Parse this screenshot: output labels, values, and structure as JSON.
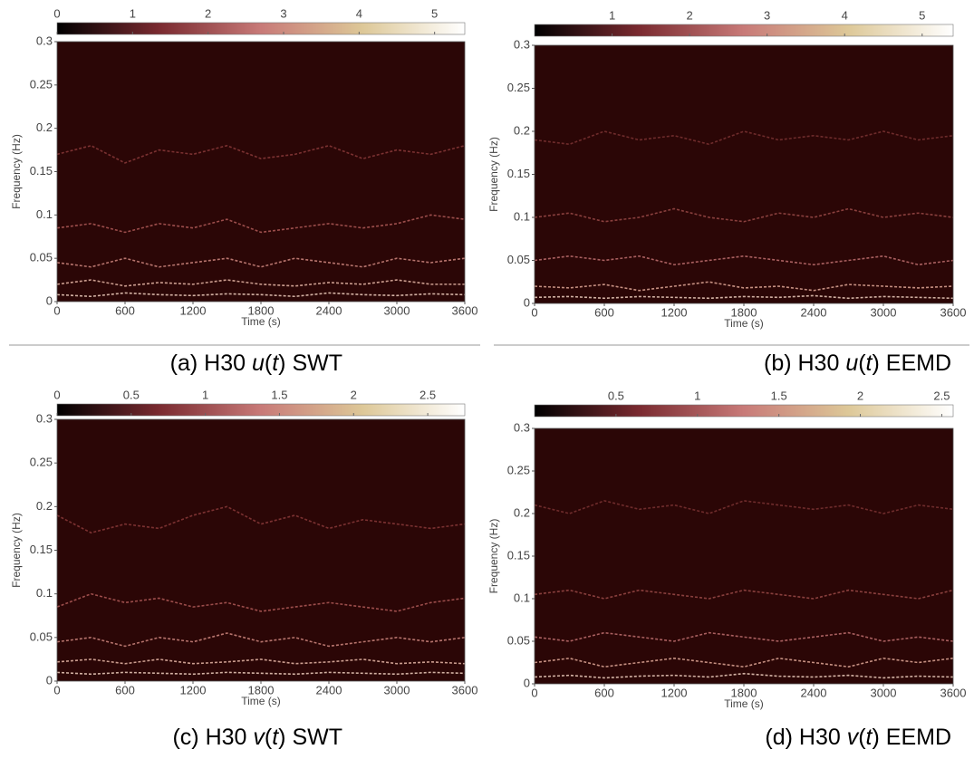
{
  "chart_data": [
    {
      "type": "heatmap",
      "xlabel": "Time (s)",
      "ylabel": "Frequency (Hz)",
      "caption": [
        {
          "text": "(a) H30 "
        },
        {
          "text": "u",
          "italic": true
        },
        {
          "text": "("
        },
        {
          "text": "t",
          "italic": true
        },
        {
          "text": ") SWT"
        }
      ],
      "xlim": [
        0,
        3600
      ],
      "xticks": [
        0,
        600,
        1200,
        1800,
        2400,
        3000,
        3600
      ],
      "ylim": [
        0,
        0.3
      ],
      "yticks": [
        0,
        0.05,
        0.1,
        0.15,
        0.2,
        0.25,
        0.3
      ],
      "colorbar": {
        "lim": [
          0,
          5.4
        ],
        "ticks": [
          0,
          1,
          2,
          3,
          4,
          5
        ],
        "colors": [
          "#000000",
          "#7a2a30",
          "#c87a78",
          "#ddc898",
          "#ffffff"
        ]
      },
      "background": "#2b0606",
      "x": [
        0,
        300,
        600,
        900,
        1200,
        1500,
        1800,
        2100,
        2400,
        2700,
        3000,
        3300,
        3600
      ],
      "series": [
        {
          "color": "#8a3a3a",
          "values": [
            0.17,
            0.18,
            0.16,
            0.175,
            0.17,
            0.18,
            0.165,
            0.17,
            0.18,
            0.165,
            0.175,
            0.17,
            0.18
          ]
        },
        {
          "color": "#b05a58",
          "values": [
            0.085,
            0.09,
            0.08,
            0.09,
            0.085,
            0.095,
            0.08,
            0.085,
            0.09,
            0.085,
            0.09,
            0.1,
            0.095
          ]
        },
        {
          "color": "#d08880",
          "values": [
            0.045,
            0.04,
            0.05,
            0.04,
            0.045,
            0.05,
            0.04,
            0.05,
            0.045,
            0.04,
            0.05,
            0.045,
            0.05
          ]
        },
        {
          "color": "#e8b8a8",
          "values": [
            0.02,
            0.025,
            0.018,
            0.022,
            0.02,
            0.025,
            0.02,
            0.018,
            0.022,
            0.02,
            0.025,
            0.02,
            0.02
          ]
        },
        {
          "color": "#f0d0c0",
          "values": [
            0.008,
            0.006,
            0.01,
            0.008,
            0.007,
            0.009,
            0.008,
            0.006,
            0.01,
            0.008,
            0.007,
            0.009,
            0.008
          ]
        }
      ]
    },
    {
      "type": "heatmap",
      "xlabel": "Time (s)",
      "ylabel": "Frequency (Hz)",
      "caption": [
        {
          "text": "(b) H30 "
        },
        {
          "text": "u",
          "italic": true
        },
        {
          "text": "("
        },
        {
          "text": "t",
          "italic": true
        },
        {
          "text": ") EEMD"
        }
      ],
      "xlim": [
        0,
        3600
      ],
      "xticks": [
        0,
        600,
        1200,
        1800,
        2400,
        3000,
        3600
      ],
      "ylim": [
        0,
        0.3
      ],
      "yticks": [
        0,
        0.05,
        0.1,
        0.15,
        0.2,
        0.25,
        0.3
      ],
      "colorbar": {
        "lim": [
          0,
          5.4
        ],
        "ticks": [
          1,
          2,
          3,
          4,
          5
        ],
        "colors": [
          "#000000",
          "#7a2a30",
          "#c87a78",
          "#ddc898",
          "#ffffff"
        ]
      },
      "background": "#2b0606",
      "x": [
        0,
        300,
        600,
        900,
        1200,
        1500,
        1800,
        2100,
        2400,
        2700,
        3000,
        3300,
        3600
      ],
      "series": [
        {
          "color": "#7a3232",
          "values": [
            0.19,
            0.185,
            0.2,
            0.19,
            0.195,
            0.185,
            0.2,
            0.19,
            0.195,
            0.19,
            0.2,
            0.19,
            0.195
          ]
        },
        {
          "color": "#9a4a48",
          "values": [
            0.1,
            0.105,
            0.095,
            0.1,
            0.11,
            0.1,
            0.095,
            0.105,
            0.1,
            0.11,
            0.1,
            0.105,
            0.1
          ]
        },
        {
          "color": "#c07070",
          "values": [
            0.05,
            0.055,
            0.05,
            0.055,
            0.045,
            0.05,
            0.055,
            0.05,
            0.045,
            0.05,
            0.055,
            0.045,
            0.05
          ]
        },
        {
          "color": "#e0a898",
          "values": [
            0.02,
            0.018,
            0.022,
            0.015,
            0.02,
            0.025,
            0.018,
            0.02,
            0.015,
            0.022,
            0.02,
            0.018,
            0.02
          ]
        },
        {
          "color": "#f0d0c0",
          "values": [
            0.007,
            0.008,
            0.006,
            0.008,
            0.007,
            0.006,
            0.008,
            0.007,
            0.009,
            0.006,
            0.008,
            0.007,
            0.006
          ]
        }
      ]
    },
    {
      "type": "heatmap",
      "xlabel": "Time (s)",
      "ylabel": "Frequency (Hz)",
      "caption": [
        {
          "text": "(c) H30 "
        },
        {
          "text": "v",
          "italic": true
        },
        {
          "text": "("
        },
        {
          "text": "t",
          "italic": true
        },
        {
          "text": ") SWT"
        }
      ],
      "xlim": [
        0,
        3600
      ],
      "xticks": [
        0,
        600,
        1200,
        1800,
        2400,
        3000,
        3600
      ],
      "ylim": [
        0,
        0.3
      ],
      "yticks": [
        0,
        0.05,
        0.1,
        0.15,
        0.2,
        0.25,
        0.3
      ],
      "colorbar": {
        "lim": [
          0,
          2.75
        ],
        "ticks": [
          0,
          0.5,
          1,
          1.5,
          2,
          2.5
        ],
        "colors": [
          "#000000",
          "#7a2a30",
          "#c87a78",
          "#ddc898",
          "#ffffff"
        ]
      },
      "background": "#2b0606",
      "x": [
        0,
        300,
        600,
        900,
        1200,
        1500,
        1800,
        2100,
        2400,
        2700,
        3000,
        3300,
        3600
      ],
      "series": [
        {
          "color": "#8a3a3a",
          "values": [
            0.19,
            0.17,
            0.18,
            0.175,
            0.19,
            0.2,
            0.18,
            0.19,
            0.175,
            0.185,
            0.18,
            0.175,
            0.18
          ]
        },
        {
          "color": "#b05a58",
          "values": [
            0.085,
            0.1,
            0.09,
            0.095,
            0.085,
            0.09,
            0.08,
            0.085,
            0.09,
            0.085,
            0.08,
            0.09,
            0.095
          ]
        },
        {
          "color": "#d08880",
          "values": [
            0.045,
            0.05,
            0.04,
            0.05,
            0.045,
            0.055,
            0.045,
            0.05,
            0.04,
            0.045,
            0.05,
            0.045,
            0.05
          ]
        },
        {
          "color": "#e8b8a8",
          "values": [
            0.022,
            0.025,
            0.02,
            0.025,
            0.02,
            0.022,
            0.025,
            0.02,
            0.022,
            0.025,
            0.02,
            0.022,
            0.02
          ]
        },
        {
          "color": "#f0d0c0",
          "values": [
            0.01,
            0.008,
            0.01,
            0.009,
            0.008,
            0.01,
            0.009,
            0.008,
            0.01,
            0.009,
            0.008,
            0.01,
            0.009
          ]
        }
      ]
    },
    {
      "type": "heatmap",
      "xlabel": "Time (s)",
      "ylabel": "Frequency (Hz)",
      "caption": [
        {
          "text": "(d) H30 "
        },
        {
          "text": "v",
          "italic": true
        },
        {
          "text": "("
        },
        {
          "text": "t",
          "italic": true
        },
        {
          "text": ") EEMD"
        }
      ],
      "xlim": [
        0,
        3600
      ],
      "xticks": [
        0,
        600,
        1200,
        1800,
        2400,
        3000,
        3600
      ],
      "ylim": [
        0,
        0.3
      ],
      "yticks": [
        0,
        0.05,
        0.1,
        0.15,
        0.2,
        0.25,
        0.3
      ],
      "colorbar": {
        "lim": [
          0,
          2.57
        ],
        "ticks": [
          0.5,
          1,
          1.5,
          2,
          2.5
        ],
        "colors": [
          "#000000",
          "#7a2a30",
          "#c87a78",
          "#ddc898",
          "#ffffff"
        ]
      },
      "background": "#2b0606",
      "x": [
        0,
        300,
        600,
        900,
        1200,
        1500,
        1800,
        2100,
        2400,
        2700,
        3000,
        3300,
        3600
      ],
      "series": [
        {
          "color": "#7a3232",
          "values": [
            0.21,
            0.2,
            0.215,
            0.205,
            0.21,
            0.2,
            0.215,
            0.21,
            0.205,
            0.21,
            0.2,
            0.21,
            0.205
          ]
        },
        {
          "color": "#9a4a48",
          "values": [
            0.105,
            0.11,
            0.1,
            0.11,
            0.105,
            0.1,
            0.11,
            0.105,
            0.1,
            0.11,
            0.105,
            0.1,
            0.11
          ]
        },
        {
          "color": "#c07070",
          "values": [
            0.055,
            0.05,
            0.06,
            0.055,
            0.05,
            0.06,
            0.055,
            0.05,
            0.055,
            0.06,
            0.05,
            0.055,
            0.05
          ]
        },
        {
          "color": "#e0a898",
          "values": [
            0.025,
            0.03,
            0.02,
            0.025,
            0.03,
            0.025,
            0.02,
            0.03,
            0.025,
            0.02,
            0.03,
            0.025,
            0.03
          ]
        },
        {
          "color": "#f0d0c0",
          "values": [
            0.008,
            0.01,
            0.007,
            0.009,
            0.01,
            0.008,
            0.012,
            0.009,
            0.008,
            0.01,
            0.007,
            0.009,
            0.008
          ]
        }
      ]
    }
  ]
}
